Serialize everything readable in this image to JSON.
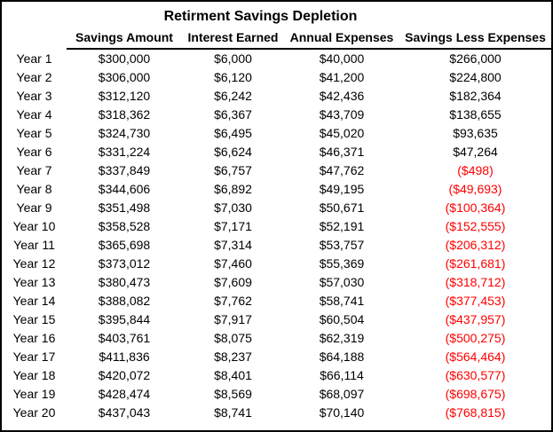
{
  "title": "Retirment Savings Depletion",
  "table": {
    "columns": [
      "Savings Amount",
      "Interest Earned",
      "Annual Expenses",
      "Savings Less Expenses"
    ],
    "rows": [
      {
        "year": "Year 1",
        "savings": "$300,000",
        "interest": "$6,000",
        "expenses": "$40,000",
        "net": "$266,000",
        "negative": false
      },
      {
        "year": "Year 2",
        "savings": "$306,000",
        "interest": "$6,120",
        "expenses": "$41,200",
        "net": "$224,800",
        "negative": false
      },
      {
        "year": "Year 3",
        "savings": "$312,120",
        "interest": "$6,242",
        "expenses": "$42,436",
        "net": "$182,364",
        "negative": false
      },
      {
        "year": "Year 4",
        "savings": "$318,362",
        "interest": "$6,367",
        "expenses": "$43,709",
        "net": "$138,655",
        "negative": false
      },
      {
        "year": "Year 5",
        "savings": "$324,730",
        "interest": "$6,495",
        "expenses": "$45,020",
        "net": "$93,635",
        "negative": false
      },
      {
        "year": "Year 6",
        "savings": "$331,224",
        "interest": "$6,624",
        "expenses": "$46,371",
        "net": "$47,264",
        "negative": false
      },
      {
        "year": "Year 7",
        "savings": "$337,849",
        "interest": "$6,757",
        "expenses": "$47,762",
        "net": "($498)",
        "negative": true
      },
      {
        "year": "Year 8",
        "savings": "$344,606",
        "interest": "$6,892",
        "expenses": "$49,195",
        "net": "($49,693)",
        "negative": true
      },
      {
        "year": "Year 9",
        "savings": "$351,498",
        "interest": "$7,030",
        "expenses": "$50,671",
        "net": "($100,364)",
        "negative": true
      },
      {
        "year": "Year 10",
        "savings": "$358,528",
        "interest": "$7,171",
        "expenses": "$52,191",
        "net": "($152,555)",
        "negative": true
      },
      {
        "year": "Year 11",
        "savings": "$365,698",
        "interest": "$7,314",
        "expenses": "$53,757",
        "net": "($206,312)",
        "negative": true
      },
      {
        "year": "Year 12",
        "savings": "$373,012",
        "interest": "$7,460",
        "expenses": "$55,369",
        "net": "($261,681)",
        "negative": true
      },
      {
        "year": "Year 13",
        "savings": "$380,473",
        "interest": "$7,609",
        "expenses": "$57,030",
        "net": "($318,712)",
        "negative": true
      },
      {
        "year": "Year 14",
        "savings": "$388,082",
        "interest": "$7,762",
        "expenses": "$58,741",
        "net": "($377,453)",
        "negative": true
      },
      {
        "year": "Year 15",
        "savings": "$395,844",
        "interest": "$7,917",
        "expenses": "$60,504",
        "net": "($437,957)",
        "negative": true
      },
      {
        "year": "Year 16",
        "savings": "$403,761",
        "interest": "$8,075",
        "expenses": "$62,319",
        "net": "($500,275)",
        "negative": true
      },
      {
        "year": "Year 17",
        "savings": "$411,836",
        "interest": "$8,237",
        "expenses": "$64,188",
        "net": "($564,464)",
        "negative": true
      },
      {
        "year": "Year 18",
        "savings": "$420,072",
        "interest": "$8,401",
        "expenses": "$66,114",
        "net": "($630,577)",
        "negative": true
      },
      {
        "year": "Year 19",
        "savings": "$428,474",
        "interest": "$8,569",
        "expenses": "$68,097",
        "net": "($698,675)",
        "negative": true
      },
      {
        "year": "Year 20",
        "savings": "$437,043",
        "interest": "$8,741",
        "expenses": "$70,140",
        "net": "($768,815)",
        "negative": true
      }
    ]
  },
  "colors": {
    "negative_value": "#FF0000",
    "text": "#000000",
    "border": "#000000",
    "background": "#FFFFFF"
  }
}
